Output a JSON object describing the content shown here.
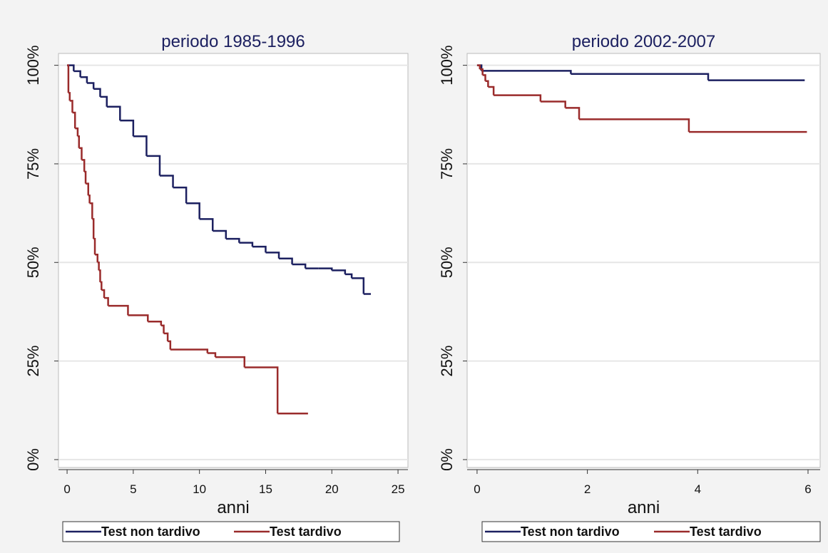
{
  "chart_data": [
    {
      "type": "step",
      "title": "periodo 1985-1996",
      "xlabel": "anni",
      "xlim": [
        -0.65,
        25.75
      ],
      "ylim": [
        -2,
        103
      ],
      "grid": true,
      "legend": "bottom",
      "xticks": [
        0,
        5,
        10,
        15,
        20,
        25
      ],
      "yticks": [
        {
          "value": 0,
          "label": "0%"
        },
        {
          "value": 25,
          "label": "25%"
        },
        {
          "value": 50,
          "label": "50%"
        },
        {
          "value": 75,
          "label": "75%"
        },
        {
          "value": 100,
          "label": "100%"
        }
      ],
      "series": [
        {
          "name": "Test non tardivo",
          "color": "#1c2060",
          "x": [
            0,
            0.5,
            1,
            1.5,
            2,
            2.5,
            3,
            4,
            5,
            6,
            7,
            8,
            9,
            10,
            11,
            12,
            13,
            14,
            15,
            16,
            17,
            18,
            19,
            20,
            21,
            21.5,
            22.4,
            22.95
          ],
          "values": [
            100,
            98.5,
            97,
            95.5,
            94,
            92,
            89.5,
            86,
            82,
            77,
            72,
            69,
            65,
            61,
            58,
            56,
            55,
            54,
            52.5,
            51,
            49.5,
            48.5,
            48.5,
            48,
            47,
            46,
            42,
            42
          ]
        },
        {
          "name": "Test tardivo",
          "color": "#9a2b2b",
          "x": [
            0,
            0.1,
            0.2,
            0.4,
            0.6,
            0.8,
            0.9,
            1.1,
            1.3,
            1.4,
            1.6,
            1.7,
            1.9,
            2,
            2.1,
            2.3,
            2.4,
            2.5,
            2.6,
            2.8,
            3.1,
            4.6,
            6.1,
            7.1,
            7.3,
            7.6,
            7.8,
            10.6,
            11.2,
            13.4,
            15.9,
            18.2
          ],
          "values": [
            100,
            93,
            91,
            88,
            84,
            82,
            79,
            76,
            73,
            70,
            67,
            65,
            61,
            56,
            52,
            50,
            48,
            45,
            43,
            41,
            39,
            36.6,
            35,
            34,
            32,
            30,
            27.9,
            27,
            26,
            23.4,
            11.7,
            11.7
          ]
        }
      ]
    },
    {
      "type": "step",
      "title": "periodo 2002-2007",
      "xlabel": "anni",
      "xlim": [
        -0.18,
        6.22
      ],
      "ylim": [
        -2,
        103
      ],
      "grid": true,
      "legend": "bottom",
      "xticks": [
        0,
        2,
        4,
        6
      ],
      "yticks": [
        {
          "value": 0,
          "label": "0%"
        },
        {
          "value": 25,
          "label": "25%"
        },
        {
          "value": 50,
          "label": "50%"
        },
        {
          "value": 75,
          "label": "75%"
        },
        {
          "value": 100,
          "label": "100%"
        }
      ],
      "series": [
        {
          "name": "Test non tardivo",
          "color": "#1c2060",
          "x": [
            0,
            0.08,
            1.7,
            4.19,
            5.94
          ],
          "values": [
            100,
            98.6,
            97.8,
            96.2,
            96.2
          ]
        },
        {
          "name": "Test tardivo",
          "color": "#9a2b2b",
          "x": [
            0,
            0.05,
            0.1,
            0.15,
            0.2,
            0.3,
            1.15,
            1.6,
            1.85,
            3.84,
            5.98
          ],
          "values": [
            100,
            99,
            97.5,
            96,
            94.5,
            92.4,
            90.8,
            89.2,
            86.3,
            83.1,
            83.1
          ]
        }
      ]
    }
  ]
}
